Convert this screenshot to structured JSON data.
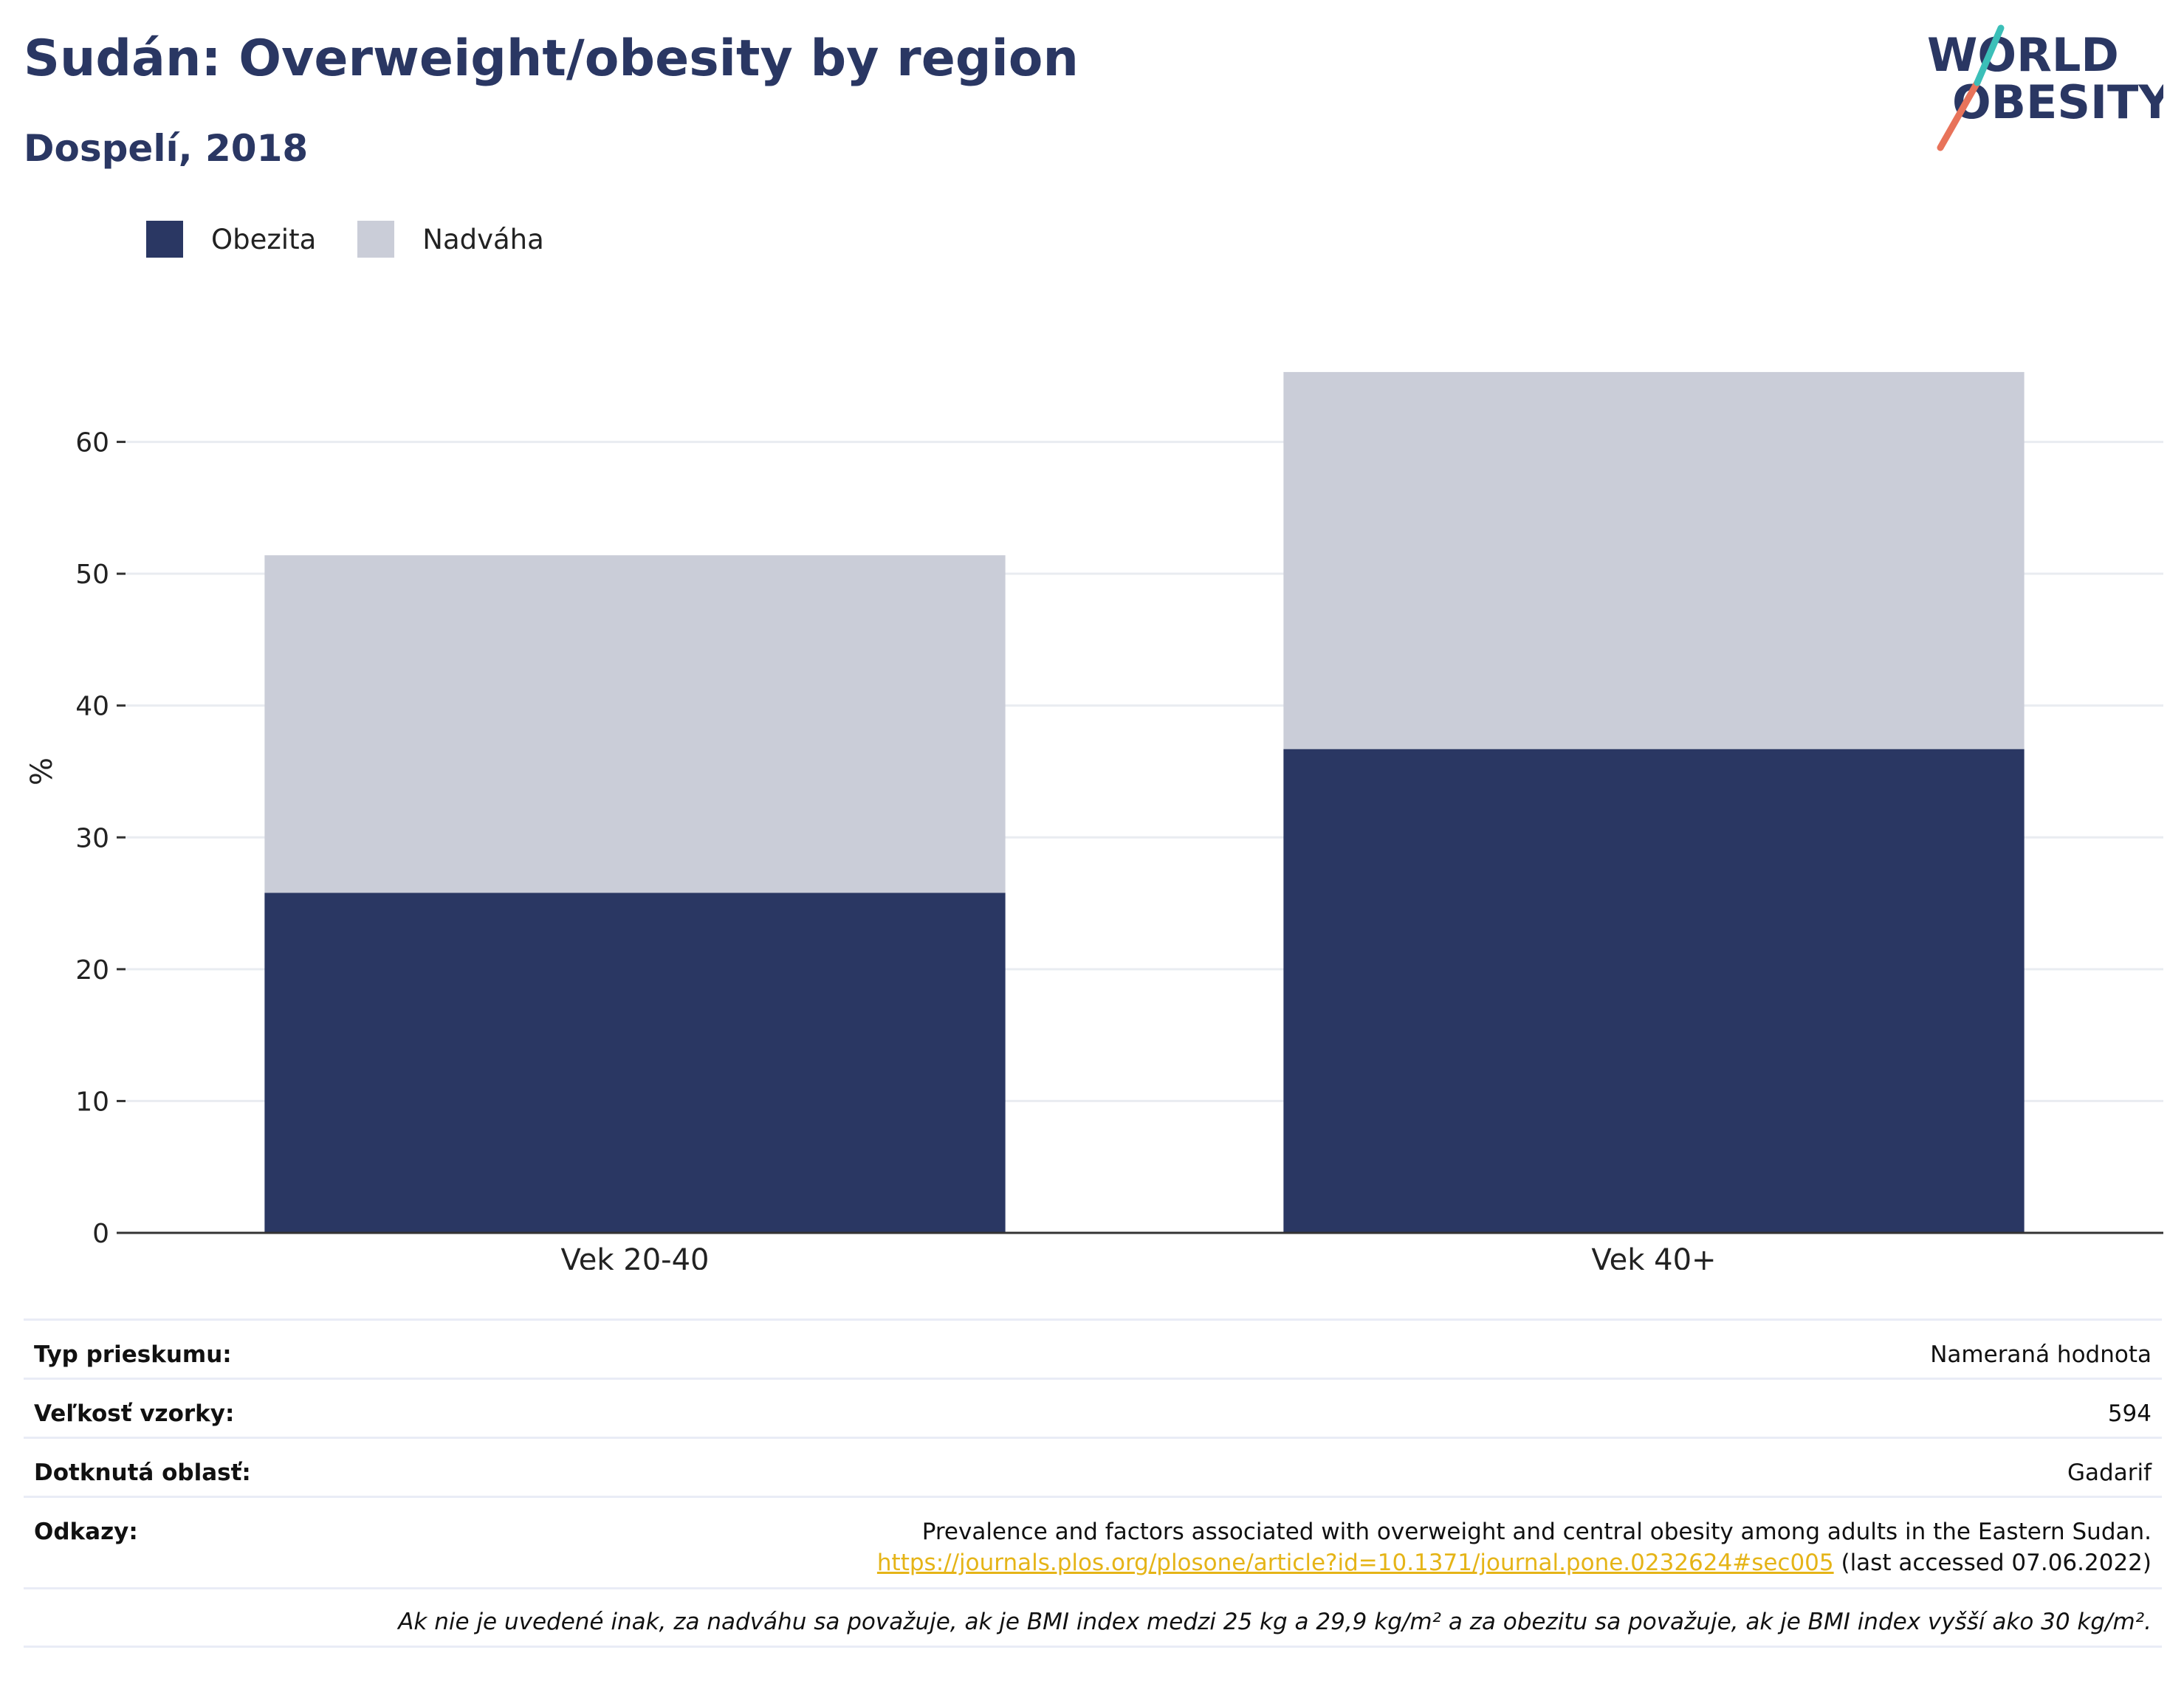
{
  "header": {
    "title": "Sudán: Overweight/obesity by region",
    "subtitle": "Dospelí, 2018"
  },
  "logo": {
    "line1": "WORLD",
    "line2": "OBESITY",
    "accent_teal": "#3bbfb8",
    "accent_coral": "#e8735a"
  },
  "legend": [
    {
      "label": "Obezita",
      "color": "#2a3763"
    },
    {
      "label": "Nadváha",
      "color": "#cacdd8"
    }
  ],
  "chart_data": {
    "type": "bar",
    "stacked": true,
    "categories": [
      "Vek 20-40",
      "Vek 40+"
    ],
    "series": [
      {
        "name": "Obezita",
        "color": "#2a3763",
        "values": [
          25.8,
          36.7
        ]
      },
      {
        "name": "Nadváha",
        "color": "#cacdd8",
        "values": [
          25.6,
          28.6
        ]
      }
    ],
    "ylabel": "%",
    "ylim": [
      0,
      70
    ],
    "yticks": [
      0,
      10,
      20,
      30,
      40,
      50,
      60
    ],
    "grid": true,
    "legend_position": "top-left"
  },
  "info": {
    "survey_type_label": "Typ prieskumu:",
    "survey_type_value": "Nameraná hodnota",
    "sample_size_label": "Veľkosť vzorky:",
    "sample_size_value": "594",
    "area_label": "Dotknutá oblasť:",
    "area_value": "Gadarif",
    "refs_label": "Odkazy:",
    "refs_text": "Prevalence and factors associated with overweight and central obesity among adults in the Eastern Sudan.",
    "refs_link": "https://journals.plos.org/plosone/article?id=10.1371/journal.pone.0232624#sec005",
    "refs_accessed": " (last accessed 07.06.2022)",
    "note": "Ak nie je uvedené inak, za nadváhu sa považuje, ak je BMI index medzi 25 kg a 29,9 kg/m² a za obezitu sa považuje, ak je BMI index vyšší ako 30 kg/m²."
  }
}
